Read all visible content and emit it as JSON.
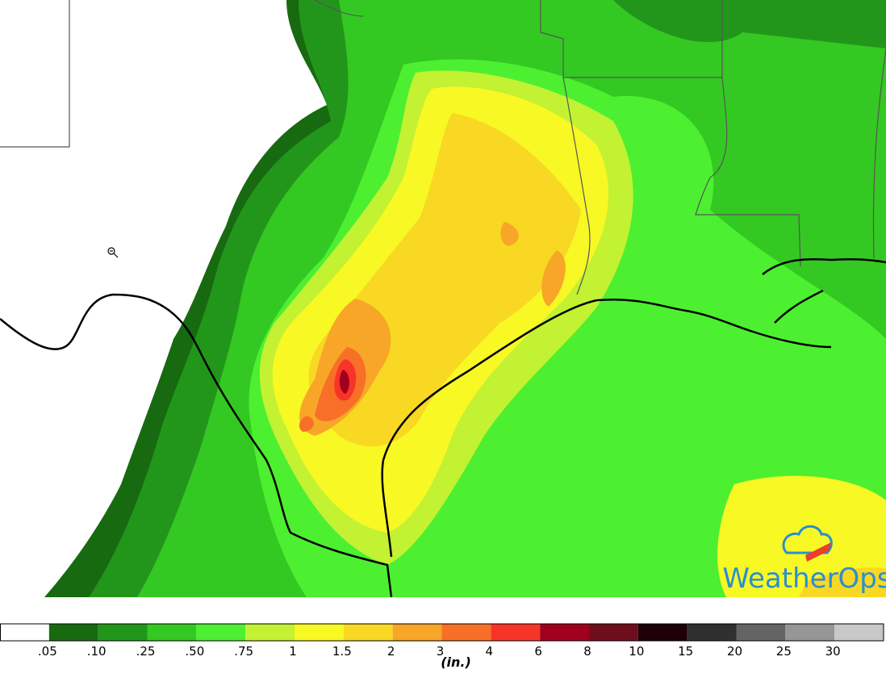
{
  "map": {
    "logo": "WeatherOps"
  },
  "legend": {
    "labels": [
      ".05",
      ".10",
      ".25",
      ".50",
      ".75",
      "1",
      "1.5",
      "2",
      "3",
      "4",
      "6",
      "8",
      "10",
      "15",
      "20",
      "25",
      "30"
    ],
    "colors": [
      "#ffffff",
      "#176a0f",
      "#22961a",
      "#34c822",
      "#4cf030",
      "#c2f232",
      "#f8f824",
      "#f8d822",
      "#f8a628",
      "#f87028",
      "#f83428",
      "#a0001e",
      "#6e0e1c",
      "#1e0006",
      "#303030",
      "#646464",
      "#969696",
      "#c8c8c8"
    ],
    "unit": "(in.)"
  }
}
